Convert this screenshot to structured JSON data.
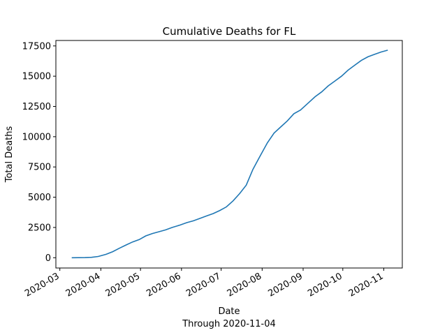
{
  "chart_data": {
    "type": "line",
    "title": "Cumulative Deaths for FL",
    "xlabel": "Date",
    "subtitle_below_xlabel": "Through 2020-11-04",
    "ylabel": "Total Deaths",
    "x_tick_labels": [
      "2020-03",
      "2020-04",
      "2020-05",
      "2020-06",
      "2020-07",
      "2020-08",
      "2020-09",
      "2020-10",
      "2020-11"
    ],
    "y_tick_labels": [
      "0",
      "2500",
      "5000",
      "7500",
      "10000",
      "12500",
      "15000",
      "17500"
    ],
    "y_ticks": [
      0,
      2500,
      5000,
      7500,
      10000,
      12500,
      15000,
      17500
    ],
    "xlim": [
      "2020-02-27",
      "2020-11-15"
    ],
    "ylim": [
      -850,
      17950
    ],
    "grid": false,
    "legend": "none",
    "line_color": "#1f77b4",
    "series": [
      {
        "x": [
          "2020-03-10",
          "2020-03-15",
          "2020-03-20",
          "2020-03-25",
          "2020-03-30",
          "2020-04-05",
          "2020-04-10",
          "2020-04-15",
          "2020-04-20",
          "2020-04-25",
          "2020-04-30",
          "2020-05-05",
          "2020-05-10",
          "2020-05-15",
          "2020-05-20",
          "2020-05-25",
          "2020-05-31",
          "2020-06-05",
          "2020-06-10",
          "2020-06-15",
          "2020-06-20",
          "2020-06-25",
          "2020-06-30",
          "2020-07-05",
          "2020-07-10",
          "2020-07-15",
          "2020-07-20",
          "2020-07-25",
          "2020-07-30",
          "2020-08-05",
          "2020-08-10",
          "2020-08-15",
          "2020-08-20",
          "2020-08-25",
          "2020-08-30",
          "2020-09-05",
          "2020-09-10",
          "2020-09-15",
          "2020-09-20",
          "2020-09-25",
          "2020-09-30",
          "2020-10-05",
          "2020-10-10",
          "2020-10-15",
          "2020-10-20",
          "2020-10-25",
          "2020-10-30",
          "2020-11-04"
        ],
        "values": [
          0,
          5,
          10,
          30,
          100,
          280,
          500,
          780,
          1050,
          1300,
          1500,
          1800,
          2000,
          2150,
          2300,
          2500,
          2700,
          2900,
          3050,
          3250,
          3450,
          3650,
          3900,
          4200,
          4700,
          5300,
          6000,
          7300,
          8300,
          9500,
          10300,
          10800,
          11300,
          11900,
          12200,
          12800,
          13300,
          13700,
          14200,
          14600,
          15000,
          15500,
          15900,
          16300,
          16600,
          16800,
          17000,
          17150
        ]
      }
    ]
  }
}
